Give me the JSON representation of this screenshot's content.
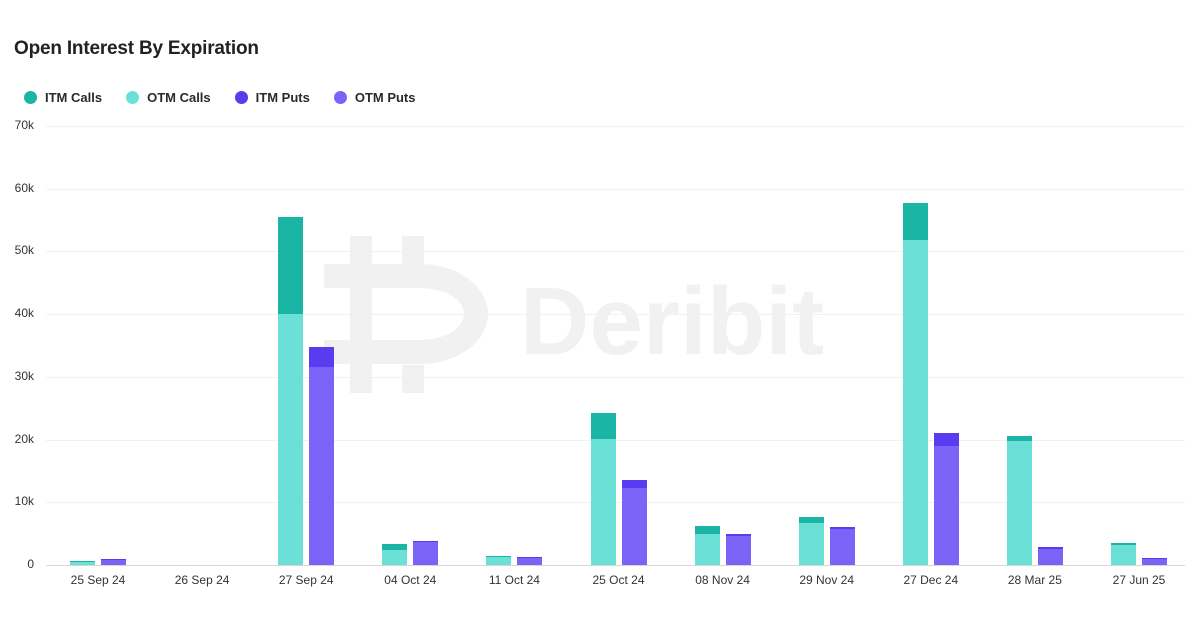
{
  "chart_data": {
    "type": "bar",
    "stacked": true,
    "title": "Open Interest By Expiration",
    "xlabel": "",
    "ylabel": "",
    "ylim": [
      0,
      70000
    ],
    "yticks": [
      0,
      10000,
      20000,
      30000,
      40000,
      50000,
      60000,
      70000
    ],
    "ytick_labels": [
      "0",
      "10k",
      "20k",
      "30k",
      "40k",
      "50k",
      "60k",
      "70k"
    ],
    "grid": true,
    "legend_position": "top-left",
    "watermark": "Deribit",
    "categories": [
      "25 Sep 24",
      "26 Sep 24",
      "27 Sep 24",
      "04 Oct 24",
      "11 Oct 24",
      "25 Oct 24",
      "08 Nov 24",
      "29 Nov 24",
      "27 Dec 24",
      "28 Mar 25",
      "27 Jun 25"
    ],
    "stacks": [
      {
        "name": "Calls",
        "series": [
          "OTM Calls",
          "ITM Calls"
        ]
      },
      {
        "name": "Puts",
        "series": [
          "OTM Puts",
          "ITM Puts"
        ]
      }
    ],
    "series": [
      {
        "name": "ITM Calls",
        "stack": "Calls",
        "color": "#1AB5A4",
        "values": [
          100,
          0,
          15500,
          1050,
          200,
          4200,
          1200,
          1000,
          5800,
          900,
          300
        ]
      },
      {
        "name": "OTM Calls",
        "stack": "Calls",
        "color": "#6BE0D6",
        "values": [
          500,
          0,
          40000,
          2350,
          1200,
          20100,
          5000,
          6700,
          51900,
          19700,
          3200
        ]
      },
      {
        "name": "ITM Puts",
        "stack": "Puts",
        "color": "#5A3CF0",
        "values": [
          100,
          0,
          3200,
          200,
          100,
          1400,
          200,
          300,
          2000,
          300,
          100
        ]
      },
      {
        "name": "OTM Puts",
        "stack": "Puts",
        "color": "#7C63F7",
        "values": [
          800,
          0,
          31600,
          3600,
          1100,
          12200,
          4700,
          5800,
          19000,
          2600,
          1000
        ]
      }
    ]
  },
  "legend": [
    {
      "label": "ITM Calls",
      "color": "#1AB5A4"
    },
    {
      "label": "OTM Calls",
      "color": "#6BE0D6"
    },
    {
      "label": "ITM Puts",
      "color": "#5A3CF0"
    },
    {
      "label": "OTM Puts",
      "color": "#7C63F7"
    }
  ],
  "watermark_text": "Deribit"
}
